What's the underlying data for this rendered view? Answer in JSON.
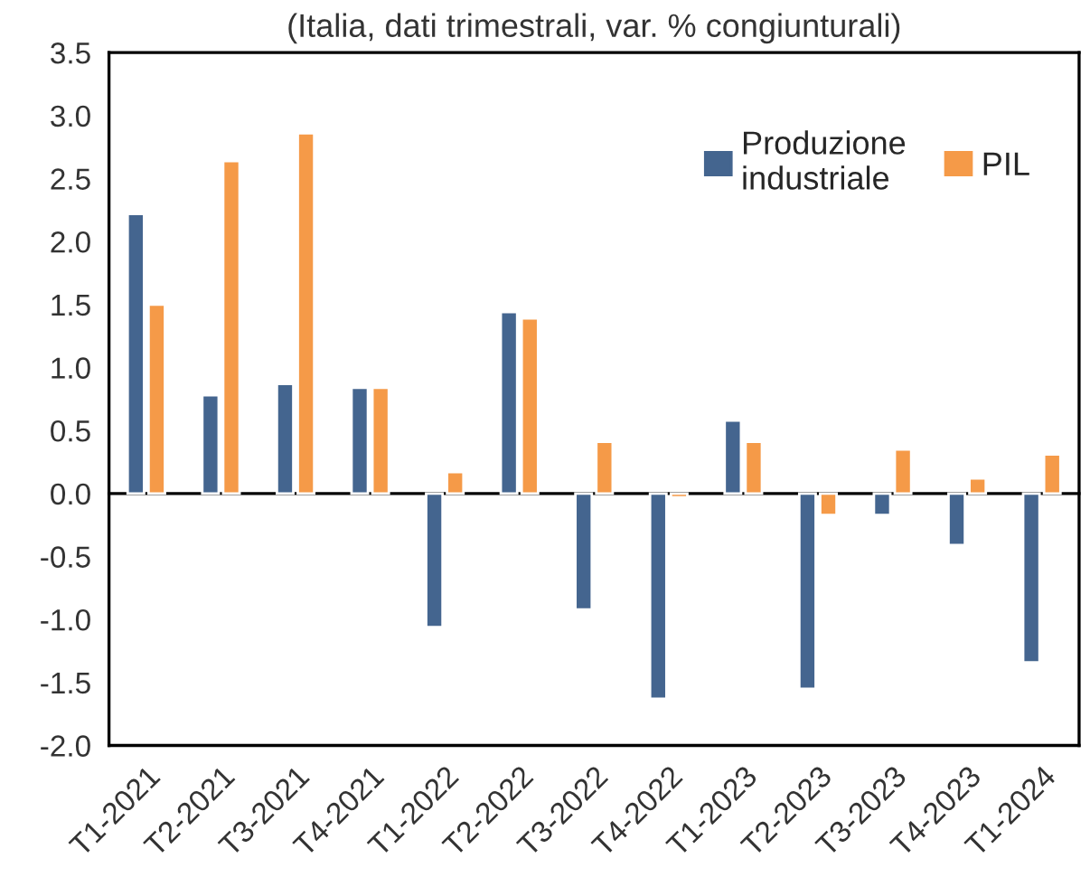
{
  "chart_data": {
    "type": "bar",
    "title": "(Italia, dati trimestrali, var. % congiunturali)",
    "categories": [
      "T1-2021",
      "T2-2021",
      "T3-2021",
      "T4-2021",
      "T1-2022",
      "T2-2022",
      "T3-2022",
      "T4-2022",
      "T1-2023",
      "T2-2023",
      "T3-2023",
      "T4-2023",
      "T1-2024"
    ],
    "series": [
      {
        "name": "Produzione\nindustriale",
        "color": "#44658f",
        "values": [
          2.22,
          0.78,
          0.87,
          0.84,
          -1.06,
          1.44,
          -0.92,
          -1.63,
          0.58,
          -1.55,
          -0.17,
          -0.41,
          -1.34
        ]
      },
      {
        "name": "PIL",
        "color": "#f59a48",
        "values": [
          1.5,
          2.64,
          2.86,
          0.84,
          0.17,
          1.39,
          0.41,
          -0.03,
          0.41,
          -0.17,
          0.35,
          0.12,
          0.31
        ]
      }
    ],
    "ylim": [
      -2.0,
      3.5
    ],
    "yticks": [
      {
        "value": -2.0,
        "label": "-2.0"
      },
      {
        "value": -1.5,
        "label": "-1.5"
      },
      {
        "value": -1.0,
        "label": "-1.0"
      },
      {
        "value": -0.5,
        "label": "-0.5"
      },
      {
        "value": 0.0,
        "label": "0.0"
      },
      {
        "value": 0.5,
        "label": "0.5"
      },
      {
        "value": 1.0,
        "label": "1.0"
      },
      {
        "value": 1.5,
        "label": "1.5"
      },
      {
        "value": 2.0,
        "label": "2.0"
      },
      {
        "value": 2.5,
        "label": "2.5"
      },
      {
        "value": 3.0,
        "label": "3.0"
      },
      {
        "value": 3.5,
        "label": "3.5"
      }
    ],
    "legend": "top right"
  }
}
